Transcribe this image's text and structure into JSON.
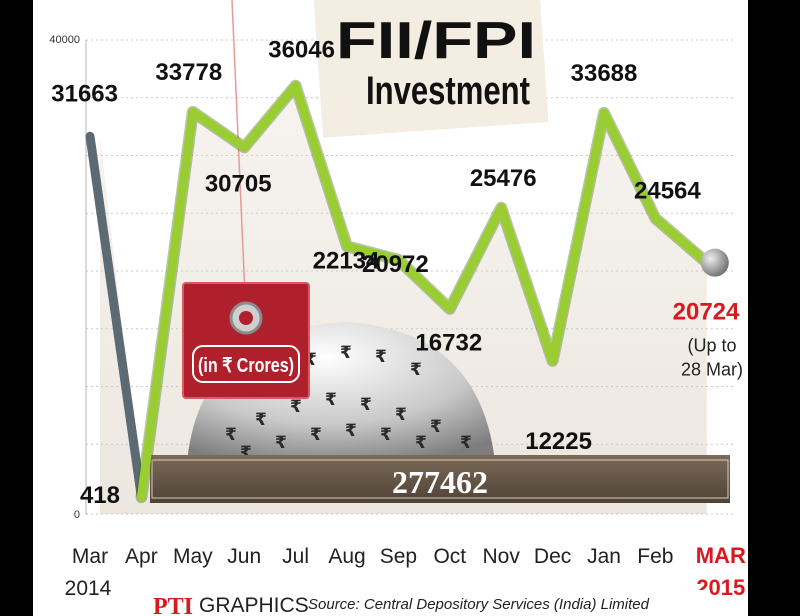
{
  "chart_data": {
    "type": "line",
    "title": "FII/FPI",
    "subtitle": "Investment",
    "unit_tag": "(in ₹ Crores)",
    "total_label": "277462",
    "ylim": [
      0,
      40000
    ],
    "y_tick_labels": [
      "40000",
      "0"
    ],
    "grid": true,
    "categories": [
      "Mar",
      "Apr",
      "May",
      "Jun",
      "Jul",
      "Aug",
      "Sep",
      "Oct",
      "Nov",
      "Dec",
      "Jan",
      "Feb",
      "MAR"
    ],
    "year_labels": [
      {
        "text": "2014",
        "category_index": 0,
        "highlight": false
      },
      {
        "text": "2015",
        "category_index": 12,
        "highlight": true
      }
    ],
    "values": [
      31663,
      418,
      33778,
      30705,
      36046,
      22134,
      20972,
      16732,
      25476,
      12225,
      33688,
      24564,
      20724
    ],
    "value_labels": [
      "31663",
      "418",
      "33778",
      "30705",
      "36046",
      "22134",
      "20972",
      "16732",
      "25476",
      "12225",
      "33688",
      "24564",
      "20724"
    ],
    "last_value_note": [
      "(Up to",
      "28 Mar)"
    ],
    "colors": {
      "line_2014": "#5c6b73",
      "line_2015": "#9acd32",
      "highlight": "#d71920",
      "tag": "#b0202c",
      "bar": "#6b5b4c",
      "area": "#cfc3b2",
      "background": "#ffffff"
    }
  },
  "footer": {
    "brand": "PTI",
    "brand_suffix": "GRAPHICS",
    "source": "Source: Central Depository Services (India) Limited"
  }
}
